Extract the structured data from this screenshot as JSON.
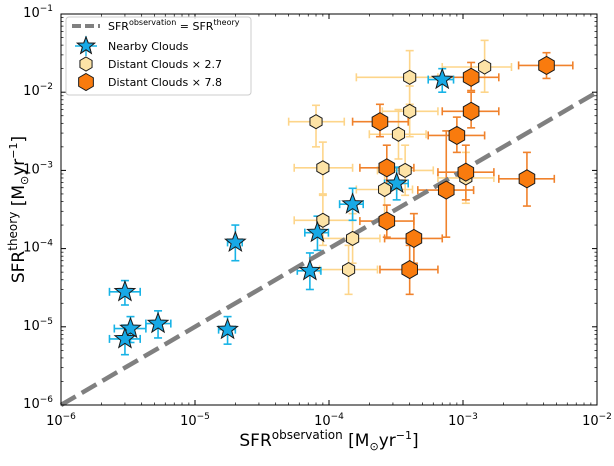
{
  "chart_data": {
    "type": "scatter",
    "title": "",
    "xscale": "log",
    "yscale": "log",
    "xlim": [
      1e-06,
      0.01
    ],
    "ylim": [
      1e-06,
      0.1
    ],
    "xlabel": {
      "base": "SFR",
      "sup": "observation",
      "unit_open": " [M",
      "unit_sub": "⊙",
      "unit_mid": "yr",
      "unit_sup": "−1",
      "unit_close": "]"
    },
    "ylabel": {
      "base": "SFR",
      "sup": "theory",
      "unit_open": " [M",
      "unit_sub": "⊙",
      "unit_mid": "yr",
      "unit_sup": "−1",
      "unit_close": "]"
    },
    "xticks": [
      {
        "value": 1e-06,
        "base": "10",
        "exp": "−6"
      },
      {
        "value": 1e-05,
        "base": "10",
        "exp": "−5"
      },
      {
        "value": 0.0001,
        "base": "10",
        "exp": "−4"
      },
      {
        "value": 0.001,
        "base": "10",
        "exp": "−3"
      },
      {
        "value": 0.01,
        "base": "10",
        "exp": "−2"
      }
    ],
    "yticks": [
      {
        "value": 1e-06,
        "base": "10",
        "exp": "−6"
      },
      {
        "value": 1e-05,
        "base": "10",
        "exp": "−5"
      },
      {
        "value": 0.0001,
        "base": "10",
        "exp": "−4"
      },
      {
        "value": 0.001,
        "base": "10",
        "exp": "−3"
      },
      {
        "value": 0.01,
        "base": "10",
        "exp": "−2"
      },
      {
        "value": 0.1,
        "base": "10",
        "exp": "−1"
      }
    ],
    "legend": {
      "placement": "top-left",
      "entries": [
        {
          "key": "equality",
          "base": "SFR",
          "sup1": "observation",
          "mid": " = SFR",
          "sup2": "theory"
        },
        {
          "key": "nearby",
          "label": "Nearby Clouds"
        },
        {
          "key": "distant27",
          "label": "Distant Clouds × 2.7"
        },
        {
          "key": "distant78",
          "label": "Distant Clouds × 7.8"
        }
      ]
    },
    "line": {
      "name": "SFR observation = SFR theory",
      "x": [
        1e-06,
        0.01
      ],
      "y": [
        1e-06,
        0.01
      ],
      "color": "#808080"
    },
    "series": [
      {
        "name": "Distant Clouds × 2.7",
        "marker": "hexagon",
        "fill": "#fde3a6",
        "errcolor": "#fdd58a",
        "points": [
          {
            "x": 8e-05,
            "y": 0.0042,
            "xerr": [
              5e-05,
              0.00013
            ],
            "yerr": [
              0.002,
              0.0068
            ]
          },
          {
            "x": 9e-05,
            "y": 0.00108,
            "xerr": [
              5.5e-05,
              0.00015
            ],
            "yerr": [
              0.0005,
              0.0023
            ]
          },
          {
            "x": 0.0004,
            "y": 0.0155,
            "xerr": [
              0.00016,
              0.00065
            ],
            "yerr": [
              0.007,
              0.034
            ]
          },
          {
            "x": 0.00145,
            "y": 0.021,
            "xerr": [
              0.0007,
              0.0023
            ],
            "yerr": [
              0.01,
              0.046
            ]
          },
          {
            "x": 0.0004,
            "y": 0.0057,
            "xerr": [
              0.00025,
              0.00065
            ],
            "yerr": [
              0.0027,
              0.012
            ]
          },
          {
            "x": 0.00033,
            "y": 0.0029,
            "xerr": [
              0.0002,
              0.00053
            ],
            "yerr": [
              0.0014,
              0.006
            ]
          },
          {
            "x": 0.00037,
            "y": 0.001,
            "xerr": [
              0.00023,
              0.0006
            ],
            "yerr": [
              0.00048,
              0.0021
            ]
          },
          {
            "x": 0.00026,
            "y": 0.00057,
            "xerr": [
              0.00016,
              0.00042
            ],
            "yerr": [
              0.00027,
              0.0012
            ]
          },
          {
            "x": 0.00105,
            "y": 0.0008,
            "xerr": [
              0.00065,
              0.0017
            ],
            "yerr": [
              0.00038,
              0.0017
            ]
          },
          {
            "x": 9e-05,
            "y": 0.00023,
            "xerr": [
              5.5e-05,
              0.00015
            ],
            "yerr": [
              0.00011,
              0.00048
            ]
          },
          {
            "x": 0.00015,
            "y": 0.000135,
            "xerr": [
              9e-05,
              0.00024
            ],
            "yerr": [
              6.5e-05,
              0.00028
            ]
          },
          {
            "x": 0.00014,
            "y": 5.4e-05,
            "xerr": [
              8.5e-05,
              0.00023
            ],
            "yerr": [
              2.6e-05,
              0.00011
            ]
          }
        ]
      },
      {
        "name": "Distant Clouds × 7.8",
        "marker": "hexagon",
        "fill": "#f97b0e",
        "errcolor": "#f0822c",
        "points": [
          {
            "x": 0.0042,
            "y": 0.022,
            "xerr": [
              0.0026,
              0.0066
            ],
            "yerr": [
              0.015,
              0.032
            ]
          },
          {
            "x": 0.00115,
            "y": 0.0155,
            "xerr": [
              0.0007,
              0.00185
            ],
            "yerr": [
              0.0105,
              0.024
            ]
          },
          {
            "x": 0.00024,
            "y": 0.0042,
            "xerr": [
              0.00015,
              0.00039
            ],
            "yerr": [
              0.0027,
              0.007
            ]
          },
          {
            "x": 0.00115,
            "y": 0.0057,
            "xerr": [
              0.0007,
              0.00185
            ],
            "yerr": [
              0.0035,
              0.01
            ]
          },
          {
            "x": 0.0009,
            "y": 0.0028,
            "xerr": [
              0.00055,
              0.00145
            ],
            "yerr": [
              0.0017,
              0.0048
            ]
          },
          {
            "x": 0.00027,
            "y": 0.00108,
            "xerr": [
              0.00017,
              0.00043
            ],
            "yerr": [
              0.0006,
              0.0021
            ]
          },
          {
            "x": 0.00075,
            "y": 0.00056,
            "xerr": [
              0.00046,
              0.0012
            ],
            "yerr": [
              0.00014,
              0.0032
            ]
          },
          {
            "x": 0.00105,
            "y": 0.00095,
            "xerr": [
              0.00065,
              0.0017
            ],
            "yerr": [
              0.00042,
              0.0021
            ]
          },
          {
            "x": 0.003,
            "y": 0.00078,
            "xerr": [
              0.00185,
              0.0048
            ],
            "yerr": [
              0.00035,
              0.0017
            ]
          },
          {
            "x": 0.00027,
            "y": 0.000225,
            "xerr": [
              0.00017,
              0.00043
            ],
            "yerr": [
              0.00014,
              0.00036
            ]
          },
          {
            "x": 0.00043,
            "y": 0.000135,
            "xerr": [
              0.00026,
              0.0007
            ],
            "yerr": [
              6.5e-05,
              0.00028
            ]
          },
          {
            "x": 0.0004,
            "y": 5.4e-05,
            "xerr": [
              0.00024,
              0.00065
            ],
            "yerr": [
              2.6e-05,
              0.00011
            ]
          }
        ]
      },
      {
        "name": "Nearby Clouds",
        "marker": "star",
        "fill": "#17a9e6",
        "errcolor": "#17b3e6",
        "points": [
          {
            "x": 0.0007,
            "y": 0.0145,
            "xerr": [
              0.00055,
              0.00085
            ],
            "yerr": [
              0.01,
              0.02
            ]
          },
          {
            "x": 0.00032,
            "y": 0.00068,
            "xerr": [
              0.00026,
              0.00039
            ],
            "yerr": [
              0.00042,
              0.0011
            ]
          },
          {
            "x": 0.00015,
            "y": 0.00037,
            "xerr": [
              0.00012,
              0.00018
            ],
            "yerr": [
              0.00023,
              0.00059
            ]
          },
          {
            "x": 8.2e-05,
            "y": 0.00016,
            "xerr": [
              6.6e-05,
              9.9e-05
            ],
            "yerr": [
              9.5e-05,
              0.00026
            ]
          },
          {
            "x": 7.2e-05,
            "y": 5.2e-05,
            "xerr": [
              5.8e-05,
              8.7e-05
            ],
            "yerr": [
              3e-05,
              8.8e-05
            ]
          },
          {
            "x": 2e-05,
            "y": 0.00012,
            "xerr": [
              1.75e-05,
              2.25e-05
            ],
            "yerr": [
              7e-05,
              0.0002
            ]
          },
          {
            "x": 1.75e-05,
            "y": 9.2e-06,
            "xerr": [
              1.5e-05,
              2e-05
            ],
            "yerr": [
              6e-06,
              1.35e-05
            ]
          },
          {
            "x": 3e-06,
            "y": 2.8e-05,
            "xerr": [
              2.3e-06,
              3.9e-06
            ],
            "yerr": [
              1.9e-05,
              3.9e-05
            ]
          },
          {
            "x": 5.3e-06,
            "y": 1.1e-05,
            "xerr": [
              4.3e-06,
              6.6e-06
            ],
            "yerr": [
              7.2e-06,
              1.6e-05
            ]
          },
          {
            "x": 3.3e-06,
            "y": 9.5e-06,
            "xerr": [
              2.5e-06,
              4.3e-06
            ],
            "yerr": [
              6.3e-06,
              1.35e-05
            ]
          },
          {
            "x": 3e-06,
            "y": 7e-06,
            "xerr": [
              2.3e-06,
              3.9e-06
            ],
            "yerr": [
              4.4e-06,
              1.05e-05
            ]
          }
        ]
      }
    ]
  }
}
